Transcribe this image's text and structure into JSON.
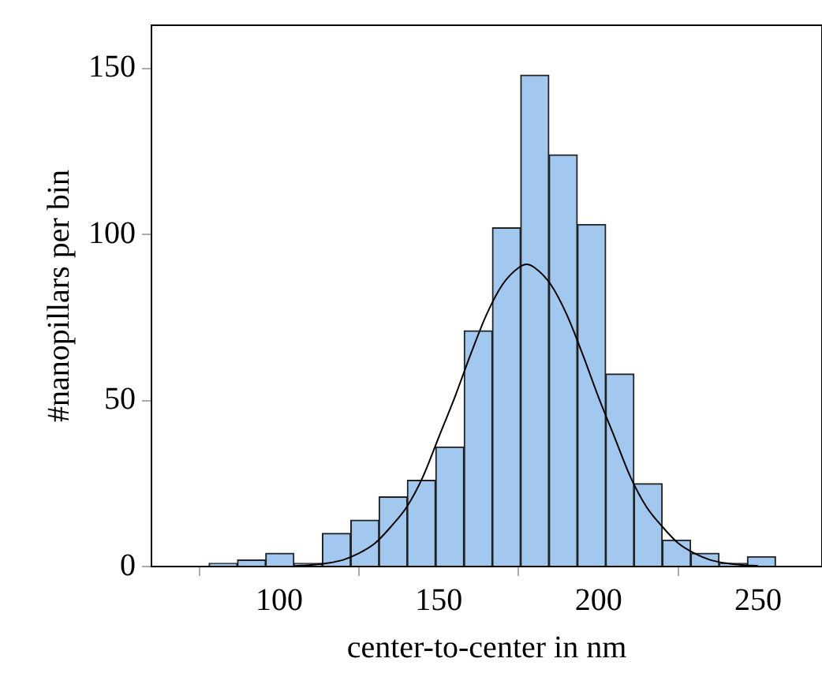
{
  "chart_data": {
    "type": "histogram",
    "xlabel": "center-to-center in nm",
    "ylabel": "#nanopillars per bin",
    "bins": [
      78.0,
      86.9,
      95.8,
      104.6,
      113.5,
      122.4,
      131.3,
      140.1,
      149.0,
      157.9,
      166.8,
      175.6,
      184.5,
      193.4,
      202.3,
      211.1,
      220.0,
      228.9,
      237.8,
      246.6,
      255.5
    ],
    "values": [
      1,
      2,
      4,
      1,
      10,
      14,
      21,
      26,
      36,
      71,
      102,
      148,
      124,
      103,
      58,
      25,
      8,
      4,
      1,
      3
    ],
    "color": "#a3c8f0",
    "series": [
      {
        "type": "line",
        "color": "#000000",
        "x": [
          105,
          110,
          115,
          120,
          125,
          130,
          135,
          140,
          145,
          150,
          155,
          160,
          165,
          170,
          175,
          177.5,
          180,
          185,
          190,
          195,
          200,
          205,
          210,
          215,
          220,
          225,
          230,
          235,
          240,
          245,
          250
        ],
        "values": [
          0.2,
          0.5,
          1,
          2,
          4,
          7,
          12,
          18,
          27,
          39,
          51,
          64,
          76,
          85,
          90,
          91,
          90,
          85,
          76,
          64,
          51,
          39,
          27,
          18,
          12,
          7,
          4,
          2,
          1,
          0.5,
          0.2
        ]
      }
    ],
    "xlim": [
      60,
      270
    ],
    "xticks": [
      100,
      150,
      200,
      250
    ],
    "ylim": [
      0,
      163
    ],
    "yticks": [
      0,
      50,
      100,
      150
    ],
    "grid": false,
    "legend": false,
    "marker": "none"
  }
}
